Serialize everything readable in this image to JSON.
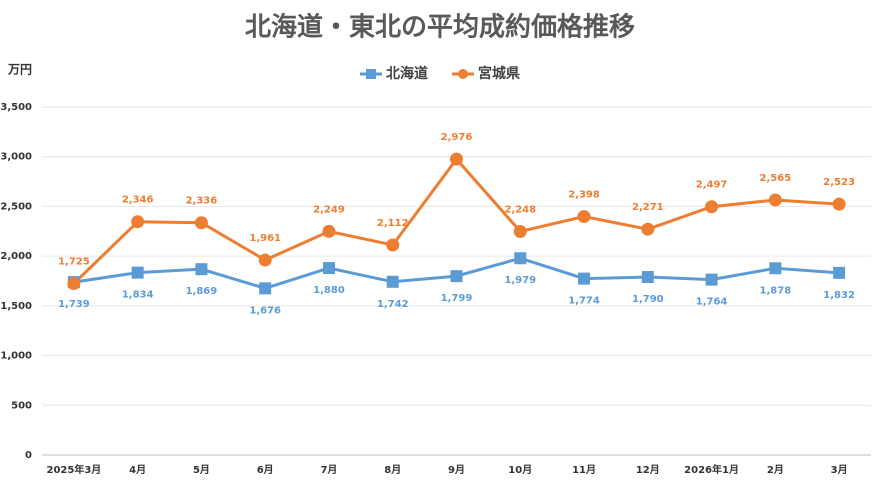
{
  "chart_data": {
    "type": "line",
    "title": "北海道・東北の平均成約価格推移",
    "y_label": "万円",
    "categories": [
      "2025年3月",
      "4月",
      "5月",
      "6月",
      "7月",
      "8月",
      "9月",
      "10月",
      "11月",
      "12月",
      "2026年1月",
      "2月",
      "3月"
    ],
    "series": [
      {
        "name": "北海道",
        "color": "#5b9bd5",
        "marker": "square",
        "values": [
          1739,
          1834,
          1869,
          1676,
          1880,
          1742,
          1799,
          1979,
          1774,
          1790,
          1764,
          1878,
          1832
        ],
        "value_labels": [
          "1,739",
          "1,834",
          "1,869",
          "1,676",
          "1,880",
          "1,742",
          "1,799",
          "1,979",
          "1,774",
          "1,790",
          "1,764",
          "1,878",
          "1,832"
        ]
      },
      {
        "name": "宮城県",
        "color": "#ed7d31",
        "marker": "circle",
        "values": [
          1725,
          2346,
          2336,
          1961,
          2249,
          2112,
          2976,
          2248,
          2398,
          2271,
          2497,
          2565,
          2523
        ],
        "value_labels": [
          "1,725",
          "2,346",
          "2,336",
          "1,961",
          "2,249",
          "2,112",
          "2,976",
          "2,248",
          "2,398",
          "2,271",
          "2,497",
          "2,565",
          "2,523"
        ]
      }
    ],
    "ylim": [
      0,
      3500
    ],
    "yticks": [
      0,
      500,
      {
        "value": 1000,
        "label": "1,000"
      },
      {
        "value": 1500,
        "label": "1,500"
      },
      {
        "value": 2000,
        "label": "2,000"
      },
      {
        "value": 2500,
        "label": "2,500"
      },
      {
        "value": 3000,
        "label": "3,000"
      },
      {
        "value": 3500,
        "label": "3,500"
      }
    ],
    "grid": true,
    "legend": "top"
  }
}
